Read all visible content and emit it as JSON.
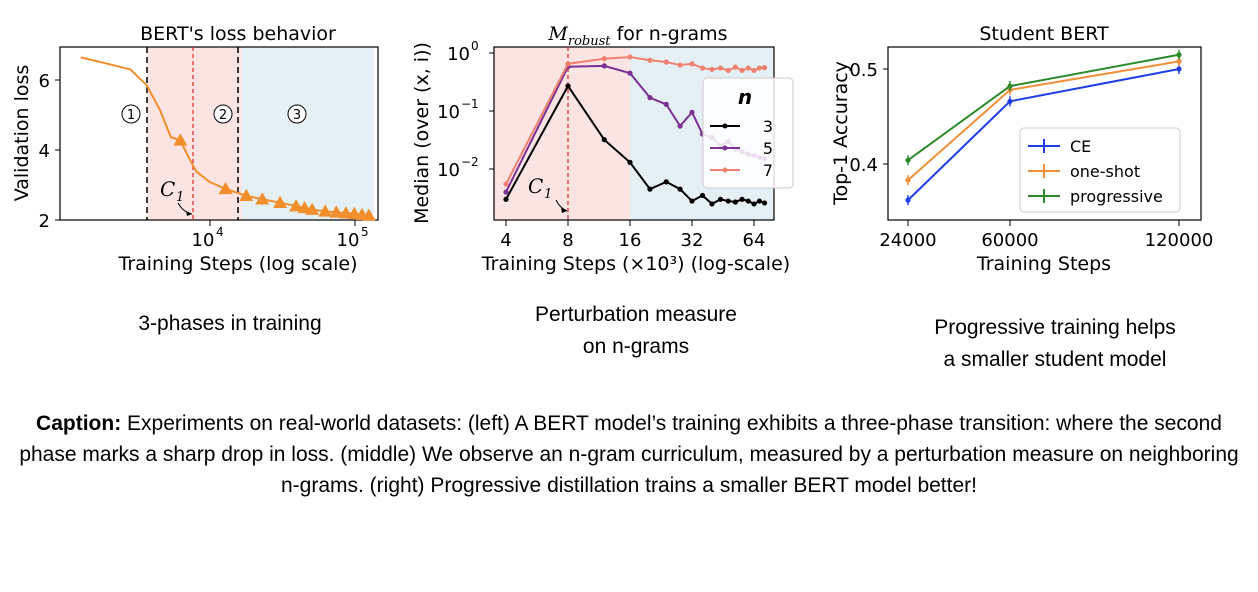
{
  "chart_data": [
    {
      "type": "line",
      "title": "BERT's loss behavior",
      "xlabel": "Training Steps (log scale)",
      "ylabel": "Validation loss",
      "x_scale": "log",
      "xlim": [
        2000,
        120000
      ],
      "ylim": [
        2,
        7
      ],
      "x_tick_labels": [
        "10^4",
        "10^5"
      ],
      "y_tick_labels": [
        "2",
        "4",
        "6"
      ],
      "grid": false,
      "color": "#f28e2b",
      "x": [
        2000,
        3000,
        4000,
        5000,
        6000,
        7000,
        8000,
        9000,
        10000,
        12000,
        15000,
        20000,
        25000,
        32000,
        40000,
        45000,
        50000,
        60000,
        70000,
        80000,
        90000,
        100000,
        110000
      ],
      "y": [
        6.7,
        6.5,
        6.35,
        5.9,
        5.2,
        4.4,
        4.3,
        3.8,
        3.4,
        3.1,
        2.9,
        2.7,
        2.6,
        2.5,
        2.4,
        2.35,
        2.3,
        2.25,
        2.22,
        2.2,
        2.18,
        2.15,
        2.13
      ],
      "markers_x": [
        8000,
        15000,
        20000,
        25000,
        32000,
        40000,
        45000,
        50000,
        60000,
        70000,
        80000,
        90000,
        100000,
        110000
      ],
      "vlines": [
        {
          "x": 4000,
          "style": "black-dashed"
        },
        {
          "x": 8000,
          "style": "red-dashed"
        },
        {
          "x": 16000,
          "style": "black-dashed"
        }
      ],
      "phases": [
        {
          "label": "①",
          "from": 4000,
          "to": 16000,
          "color": "#fbe4e2"
        },
        {
          "label": "③",
          "from": 16000,
          "to": 110000,
          "color": "#e4f0f3"
        }
      ],
      "phase_labels": [
        "①",
        "②",
        "③"
      ],
      "annotation": "C",
      "annotation_sub": "1"
    },
    {
      "type": "line",
      "title_main": "M",
      "title_sub": "robust",
      "title_rest": " for n-grams",
      "xlabel": "Training Steps (×10³) (log-scale)",
      "ylabel": "Median (over (x, i))",
      "y_scale": "log",
      "x_scale": "log",
      "x_tick_labels": [
        "4",
        "8",
        "16",
        "32",
        "64"
      ],
      "y_tick_labels": [
        "10^-2",
        "10^-1",
        "10^0"
      ],
      "grid": false,
      "legend_title": "n",
      "legend_position": "right",
      "vline_x": 8,
      "annotation": "C",
      "annotation_sub": "1",
      "series": [
        {
          "name": "3",
          "color": "#000000",
          "x": [
            4,
            8,
            12,
            16,
            20,
            24,
            28,
            32,
            36,
            40,
            44,
            48,
            52,
            56,
            60,
            64,
            68,
            72
          ],
          "y": [
            0.003,
            0.27,
            0.032,
            0.013,
            0.0045,
            0.006,
            0.0045,
            0.0028,
            0.0035,
            0.0025,
            0.003,
            0.0028,
            0.0027,
            0.003,
            0.0028,
            0.0025,
            0.0028,
            0.0026
          ]
        },
        {
          "name": "5",
          "color": "#7b3294",
          "x": [
            4,
            8,
            12,
            16,
            20,
            24,
            28,
            32,
            36,
            40,
            44,
            48,
            52,
            56,
            60,
            64,
            68,
            72
          ],
          "y": [
            0.004,
            0.58,
            0.6,
            0.45,
            0.17,
            0.13,
            0.055,
            0.095,
            0.04,
            0.035,
            0.025,
            0.03,
            0.022,
            0.02,
            0.018,
            0.017,
            0.016,
            0.015
          ]
        },
        {
          "name": "7",
          "color": "#f08070",
          "x": [
            4,
            8,
            12,
            16,
            20,
            24,
            28,
            32,
            36,
            40,
            44,
            48,
            52,
            56,
            60,
            64,
            68,
            72
          ],
          "y": [
            0.0055,
            0.65,
            0.8,
            0.85,
            0.75,
            0.7,
            0.62,
            0.65,
            0.55,
            0.52,
            0.55,
            0.5,
            0.57,
            0.5,
            0.55,
            0.5,
            0.55,
            0.56
          ]
        }
      ]
    },
    {
      "type": "line",
      "title": "Student BERT",
      "xlabel": "Training Steps",
      "ylabel": "Top-1 Accuracy",
      "x": [
        24000,
        60000,
        120000
      ],
      "x_tick_labels": [
        "24000",
        "60000",
        "120000"
      ],
      "y_tick_labels": [
        "0.4",
        "0.5"
      ],
      "ylim": [
        0.37,
        0.52
      ],
      "grid": false,
      "legend_position": "lower-right",
      "series": [
        {
          "name": "CE",
          "color": "#1f3ee8",
          "values": [
            0.362,
            0.466,
            0.5
          ]
        },
        {
          "name": "one-shot",
          "color": "#f2903a",
          "values": [
            0.383,
            0.478,
            0.508
          ]
        },
        {
          "name": "progressive",
          "color": "#2c8a2c",
          "values": [
            0.404,
            0.482,
            0.515
          ]
        }
      ]
    }
  ],
  "subcaptions": {
    "left": "3-phases in training",
    "middle_line1": "Perturbation measure",
    "middle_line2": "on n-grams",
    "right_line1": "Progressive training helps",
    "right_line2": "a smaller student model"
  },
  "caption": {
    "label": "Caption:",
    "text": "Experiments on real-world datasets: (left) A BERT model’s training exhibits a three-phase transition: where the second phase marks a sharp drop in loss. (middle) We observe an n-gram curriculum, measured by a perturbation measure on neighboring n-grams. (right) Progressive distillation trains a smaller BERT model better!"
  }
}
